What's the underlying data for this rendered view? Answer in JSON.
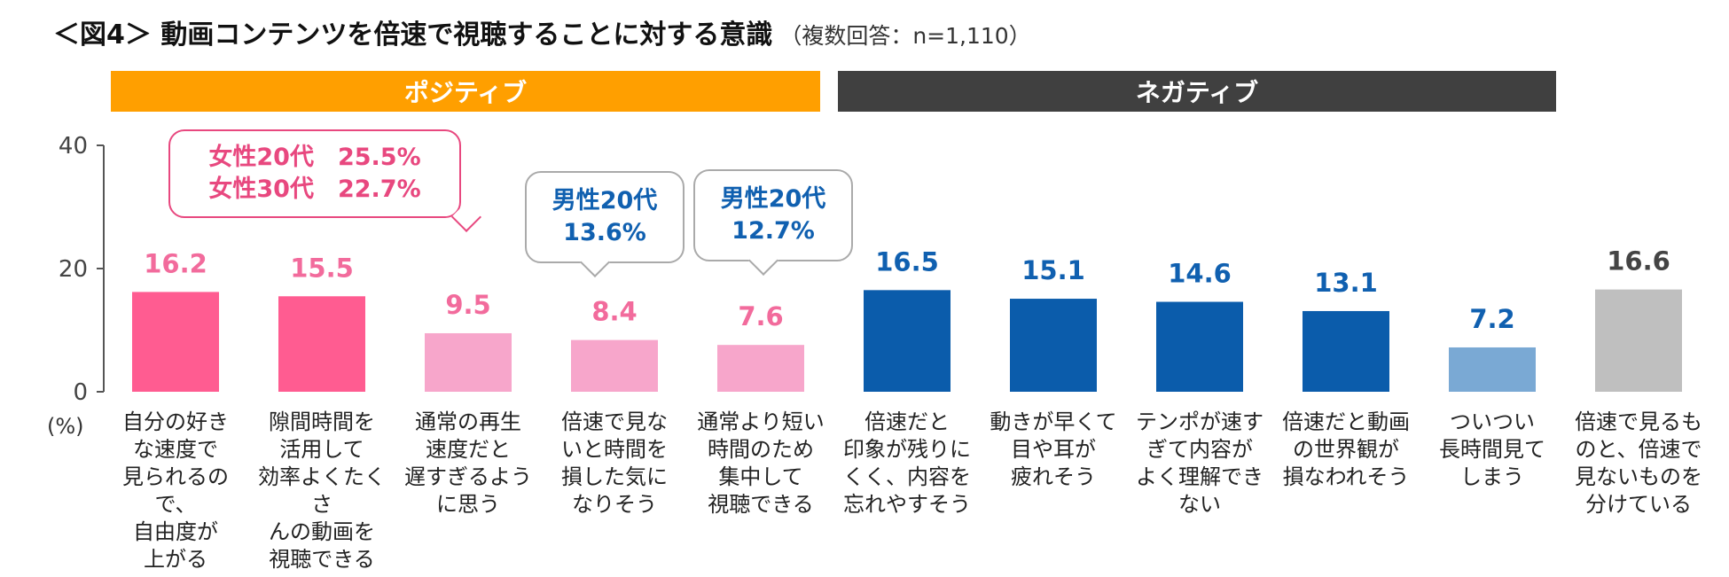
{
  "title": {
    "main": "＜図4＞ 動画コンテンツを倍速で視聴することに対する意識",
    "sub": "（複数回答：n=1,110）"
  },
  "bands": {
    "positive": "ポジティブ",
    "negative": "ネガティブ"
  },
  "callouts": [
    {
      "lines": [
        "女性20代　25.5%",
        "女性30代　22.7%"
      ],
      "color": "#e8487f"
    },
    {
      "lines": [
        "男性20代",
        "13.6%"
      ],
      "color": "#1060b0"
    },
    {
      "lines": [
        "男性20代",
        "12.7%"
      ],
      "color": "#1060b0"
    }
  ],
  "colors": {
    "pink_dark": "#ff5c91",
    "pink_light": "#f7a6cb",
    "blue_dark": "#0b5cab",
    "blue_light": "#7aa9d4",
    "gray": "#bfbfbf",
    "label_pink": "#f26b9c",
    "label_blue": "#1060b0",
    "label_gray": "#444444"
  },
  "chart_data": {
    "type": "bar",
    "title": "動画コンテンツを倍速で視聴することに対する意識",
    "ylabel": "(%)",
    "xlabel": "",
    "ylim": [
      0,
      40
    ],
    "yticks": [
      0,
      20,
      40
    ],
    "categories": [
      "自分の好き\nな速度で\n見られるので、\n自由度が\n上がる",
      "隙間時間を\n活用して\n効率よくたくさ\nんの動画を\n視聴できる",
      "通常の再生\n速度だと\n遅すぎるよう\nに思う",
      "倍速で見な\nいと時間を\n損した気に\nなりそう",
      "通常より短い\n時間のため\n集中して\n視聴できる",
      "倍速だと\n印象が残りに\nくく、内容を\n忘れやすそう",
      "動きが早くて\n目や耳が\n疲れそう",
      "テンポが速す\nぎて内容が\nよく理解でき\nない",
      "倍速だと動画\nの世界観が\n損なわれそう",
      "ついつい\n長時間見て\nしまう",
      "倍速で見るも\nのと、倍速で\n見ないものを\n分けている"
    ],
    "values": [
      16.2,
      15.5,
      9.5,
      8.4,
      7.6,
      16.5,
      15.1,
      14.6,
      13.1,
      7.2,
      16.6
    ],
    "value_labels": [
      "16.2",
      "15.5",
      "9.5",
      "8.4",
      "7.6",
      "16.5",
      "15.1",
      "14.6",
      "13.1",
      "7.2",
      "16.6"
    ],
    "groups": [
      "ポジティブ",
      "ポジティブ",
      "ポジティブ",
      "ポジティブ",
      "ポジティブ",
      "ネガティブ",
      "ネガティブ",
      "ネガティブ",
      "ネガティブ",
      "ネガティブ",
      ""
    ],
    "bar_colors": [
      "#ff5c91",
      "#ff5c91",
      "#f7a6cb",
      "#f7a6cb",
      "#f7a6cb",
      "#0b5cab",
      "#0b5cab",
      "#0b5cab",
      "#0b5cab",
      "#7aa9d4",
      "#bfbfbf"
    ],
    "label_colors": [
      "#f26b9c",
      "#f26b9c",
      "#f26b9c",
      "#f26b9c",
      "#f26b9c",
      "#1060b0",
      "#1060b0",
      "#1060b0",
      "#1060b0",
      "#1060b0",
      "#444444"
    ]
  }
}
